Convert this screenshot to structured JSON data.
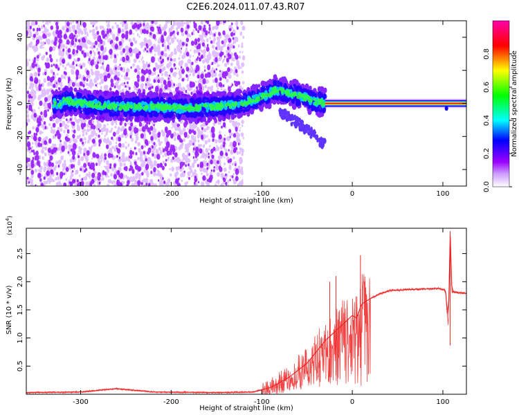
{
  "title": "C2E6.2024.011.07.43.R07",
  "chart_data": [
    {
      "type": "heatmap",
      "xlabel": "Height of straight line (km)",
      "ylabel": "Frequency (Hz)",
      "xlim": [
        -360,
        126
      ],
      "ylim": [
        -50,
        50
      ],
      "xticks": [
        -300,
        -200,
        -100,
        0,
        100
      ],
      "yticks": [
        -40,
        -20,
        0,
        20,
        40
      ],
      "colorbar": {
        "label": "Normalized spectral amplitude",
        "range": [
          0,
          1
        ],
        "ticks": [
          "0.0",
          "0.2",
          "0.4",
          "0.6",
          "0.8"
        ],
        "colors": [
          "#ffffff",
          "#9a00ff",
          "#0000ff",
          "#00ffff",
          "#00ff00",
          "#ffff00",
          "#ff0000",
          "#ff00aa"
        ]
      },
      "carrier": [
        {
          "x": -320,
          "y": 2
        },
        {
          "x": -300,
          "y": 0
        },
        {
          "x": -260,
          "y": -2
        },
        {
          "x": -220,
          "y": -2
        },
        {
          "x": -190,
          "y": -3
        },
        {
          "x": -150,
          "y": -2
        },
        {
          "x": -120,
          "y": 0
        },
        {
          "x": -100,
          "y": 4
        },
        {
          "x": -85,
          "y": 8
        },
        {
          "x": -60,
          "y": 5
        },
        {
          "x": -40,
          "y": 1
        },
        {
          "x": -30,
          "y": 0
        },
        {
          "x": 0,
          "y": 0
        },
        {
          "x": 50,
          "y": 0
        },
        {
          "x": 100,
          "y": 0
        },
        {
          "x": 126,
          "y": 0
        }
      ],
      "branch_lower": [
        {
          "x": -80,
          "y": -5
        },
        {
          "x": -60,
          "y": -12
        },
        {
          "x": -45,
          "y": -18
        },
        {
          "x": -30,
          "y": -25
        }
      ]
    },
    {
      "type": "line",
      "xlabel": "Height of straight line (km)",
      "ylabel": "SNR (10 * v/v)",
      "ylabel_multiplier_base": "(x10",
      "ylabel_multiplier_exp": "4",
      "ylabel_multiplier_close": ")",
      "xlim": [
        -360,
        126
      ],
      "ylim": [
        0,
        2.95
      ],
      "xticks": [
        -300,
        -200,
        -100,
        0,
        100
      ],
      "yticks": [
        "0.5",
        "1.0",
        "1.5",
        "2.0",
        "2.5"
      ],
      "ytick_values": [
        0.5,
        1.0,
        1.5,
        2.0,
        2.5
      ],
      "color": "#ee2222",
      "series": [
        {
          "x": [
            -360,
            -300,
            -260,
            -220,
            -150,
            -110,
            -90,
            -70,
            -50,
            -40,
            -30,
            -20,
            -10,
            0,
            5,
            10,
            20,
            30,
            40,
            60,
            80,
            95,
            103,
            106,
            108,
            110,
            126
          ],
          "y": [
            0.03,
            0.04,
            0.1,
            0.04,
            0.03,
            0.04,
            0.12,
            0.3,
            0.55,
            0.75,
            0.95,
            1.1,
            1.25,
            1.4,
            1.35,
            1.6,
            1.7,
            1.78,
            1.84,
            1.86,
            1.87,
            1.88,
            1.85,
            1.2,
            2.9,
            1.82,
            1.79
          ]
        }
      ],
      "spikes": [
        {
          "x": -25,
          "y": 2.0
        },
        {
          "x": -18,
          "y": 2.1
        },
        {
          "x": 9,
          "y": 2.47
        },
        {
          "x": 108,
          "y": 2.9
        }
      ]
    }
  ]
}
